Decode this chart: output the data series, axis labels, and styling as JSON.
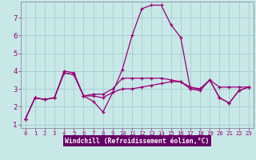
{
  "xlabel": "Windchill (Refroidissement éolien,°C)",
  "bg_color": "#c8e8e8",
  "line_color": "#990077",
  "grid_color": "#aad0d0",
  "axis_label_bg": "#660066",
  "axis_label_fg": "#ffffff",
  "xlim": [
    -0.5,
    23.5
  ],
  "ylim": [
    0.8,
    7.9
  ],
  "xticks": [
    0,
    1,
    2,
    3,
    4,
    5,
    6,
    7,
    8,
    9,
    10,
    11,
    12,
    13,
    14,
    15,
    16,
    17,
    18,
    19,
    20,
    21,
    22,
    23
  ],
  "yticks": [
    1,
    2,
    3,
    4,
    5,
    6,
    7
  ],
  "series": [
    [
      1.3,
      2.5,
      2.4,
      2.5,
      4.0,
      3.9,
      2.6,
      2.3,
      1.7,
      2.8,
      4.1,
      6.0,
      7.5,
      7.7,
      7.7,
      6.6,
      5.9,
      3.0,
      2.9,
      3.5,
      2.5,
      2.2,
      2.9,
      3.1
    ],
    [
      1.3,
      2.5,
      2.4,
      2.5,
      3.9,
      3.8,
      2.6,
      2.7,
      2.7,
      3.0,
      3.6,
      3.6,
      3.6,
      3.6,
      3.6,
      3.5,
      3.4,
      3.0,
      3.0,
      3.5,
      3.1,
      3.1,
      3.1,
      3.1
    ],
    [
      1.3,
      2.5,
      2.4,
      2.5,
      3.9,
      3.8,
      2.6,
      2.6,
      2.5,
      2.8,
      3.0,
      3.0,
      3.1,
      3.2,
      3.3,
      3.4,
      3.4,
      3.1,
      3.0,
      3.5,
      2.5,
      2.2,
      2.9,
      3.1
    ]
  ]
}
